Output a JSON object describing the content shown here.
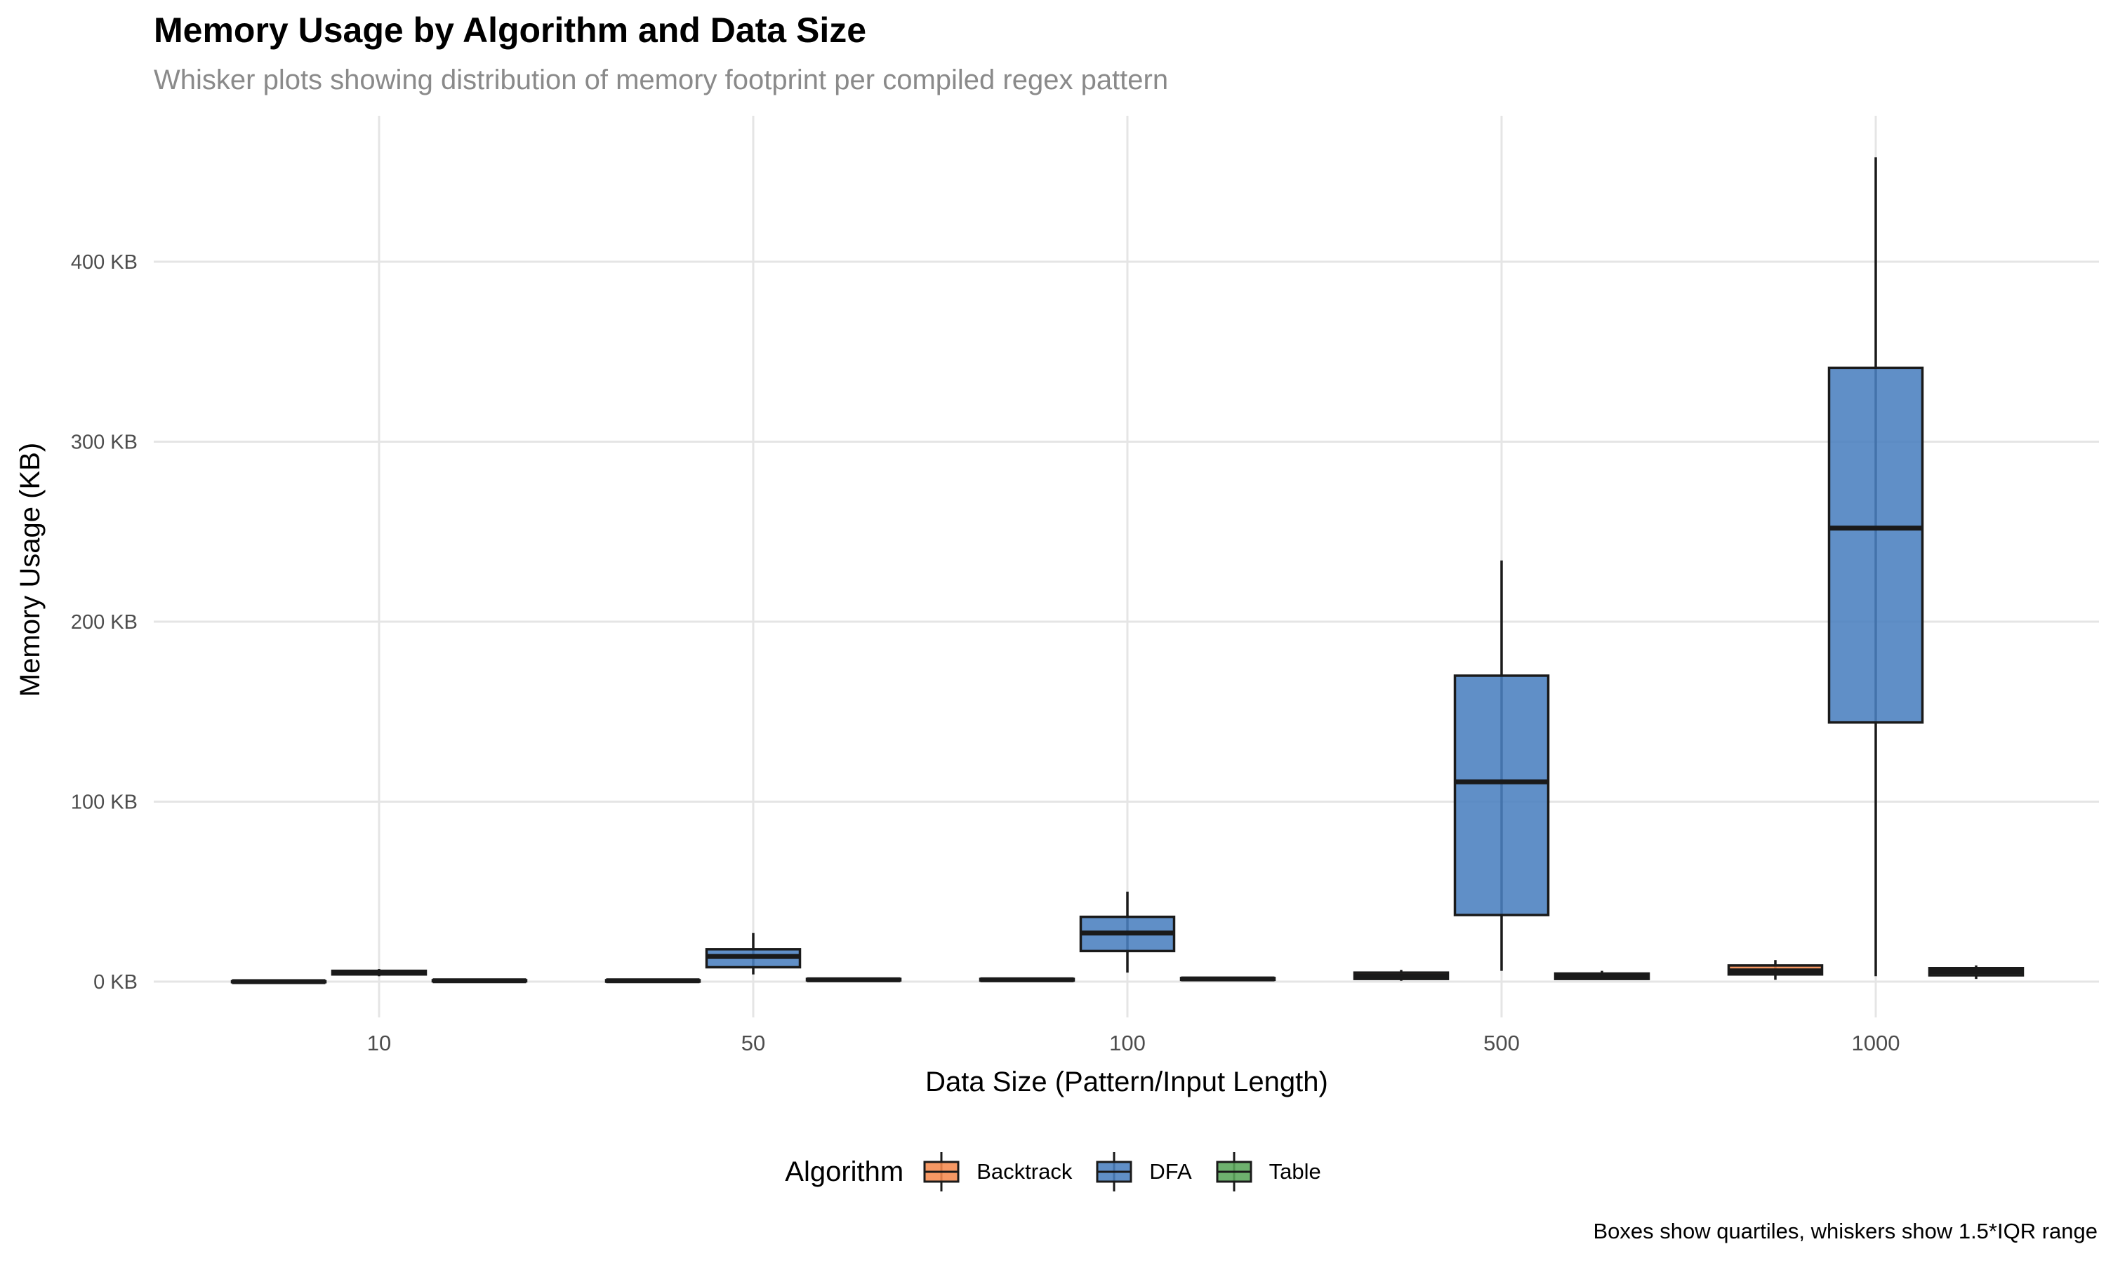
{
  "chart_data": {
    "type": "box",
    "title": "Memory Usage by Algorithm and Data Size",
    "subtitle": "Whisker plots showing distribution of memory footprint per compiled regex pattern",
    "xlabel": "Data Size (Pattern/Input Length)",
    "ylabel": "Memory Usage (KB)",
    "caption": "Boxes show quartiles, whiskers show 1.5*IQR range",
    "categories": [
      "10",
      "50",
      "100",
      "500",
      "1000"
    ],
    "y_ticks": [
      0,
      100,
      200,
      300,
      400
    ],
    "y_tick_labels": [
      "0 KB",
      "100 KB",
      "200 KB",
      "300 KB",
      "400 KB"
    ],
    "ylim": [
      -15,
      475
    ],
    "grid": true,
    "legend": {
      "title": "Algorithm",
      "position": "bottom",
      "entries": [
        "Backtrack",
        "DFA",
        "Table"
      ]
    },
    "series": [
      {
        "name": "Backtrack",
        "color": "#f58a4f",
        "boxes": [
          {
            "min": -0.5,
            "q1": -0.3,
            "median": 0.0,
            "q3": 0.2,
            "max": 0.4
          },
          {
            "min": -0.2,
            "q1": 0.0,
            "median": 0.5,
            "q3": 0.8,
            "max": 1.0
          },
          {
            "min": 0.3,
            "q1": 0.6,
            "median": 1.0,
            "q3": 1.5,
            "max": 2.0
          },
          {
            "min": 0.5,
            "q1": 1.5,
            "median": 3.0,
            "q3": 5.0,
            "max": 6.5
          },
          {
            "min": 1.0,
            "q1": 4.0,
            "median": 6.0,
            "q3": 9.0,
            "max": 12.0
          }
        ]
      },
      {
        "name": "DFA",
        "color": "#4a7fbf",
        "boxes": [
          {
            "min": 3.0,
            "q1": 4.0,
            "median": 5.0,
            "q3": 6.0,
            "max": 7.0
          },
          {
            "min": 4.0,
            "q1": 8.0,
            "median": 14.0,
            "q3": 18.0,
            "max": 27.0
          },
          {
            "min": 5.0,
            "q1": 17.0,
            "median": 27.0,
            "q3": 36.0,
            "max": 50.0
          },
          {
            "min": 6.0,
            "q1": 37.0,
            "median": 111.0,
            "q3": 170.0,
            "max": 234.0
          },
          {
            "min": 3.0,
            "q1": 144.0,
            "median": 252.0,
            "q3": 341.0,
            "max": 458.0
          }
        ]
      },
      {
        "name": "Table",
        "color": "#5aa65a",
        "boxes": [
          {
            "min": 0.0,
            "q1": 0.2,
            "median": 0.5,
            "q3": 0.8,
            "max": 1.2
          },
          {
            "min": 0.3,
            "q1": 0.7,
            "median": 1.0,
            "q3": 1.5,
            "max": 2.0
          },
          {
            "min": 0.5,
            "q1": 1.0,
            "median": 1.5,
            "q3": 2.0,
            "max": 2.5
          },
          {
            "min": 1.0,
            "q1": 1.5,
            "median": 3.0,
            "q3": 4.5,
            "max": 6.0
          },
          {
            "min": 1.5,
            "q1": 3.5,
            "median": 5.5,
            "q3": 7.5,
            "max": 9.0
          }
        ]
      }
    ]
  }
}
